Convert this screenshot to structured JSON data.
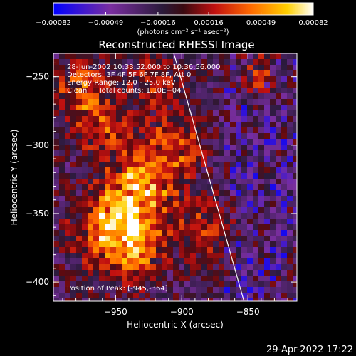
{
  "chart_data": {
    "type": "heatmap",
    "title": "Reconstructed RHESSI Image",
    "xlabel": "Heliocentric X (arcsec)",
    "ylabel": "Heliocentric Y (arcsec)",
    "xlim": [
      -997,
      -813
    ],
    "ylim": [
      -414,
      -233
    ],
    "x_ticks": [
      {
        "value": -950,
        "label": "−950"
      },
      {
        "value": -900,
        "label": "−900"
      },
      {
        "value": -850,
        "label": "−850"
      }
    ],
    "y_ticks": [
      {
        "value": -250,
        "label": "−250"
      },
      {
        "value": -300,
        "label": "−300"
      },
      {
        "value": -350,
        "label": "−350"
      },
      {
        "value": -400,
        "label": "−400"
      }
    ],
    "colorbar": {
      "min": -0.00082,
      "max": 0.00082,
      "ticks": [
        {
          "value": -0.00082,
          "label": "−0.00082"
        },
        {
          "value": -0.00049,
          "label": "−0.00049"
        },
        {
          "value": -0.00016,
          "label": "−0.00016"
        },
        {
          "value": 0.00016,
          "label": "0.00016"
        },
        {
          "value": 0.00049,
          "label": "0.00049"
        },
        {
          "value": 0.00082,
          "label": "0.00082"
        }
      ],
      "unit_label": "(photons cm⁻² s⁻¹ asec⁻²)",
      "colors": [
        "#0000ff",
        "#7a2ea0",
        "#2a1a3a",
        "#5a0a10",
        "#c01010",
        "#ff6a00",
        "#ffd000",
        "#ffffff"
      ]
    },
    "annotations": [
      "28-Jun-2002 10:33:52.000 to 10:36:56.000",
      "Detectors: 3F 4F 5F 6F 7F 8F, Att 0",
      "Energy Range: 12.0 - 25.0 keV",
      "Clean     Total counts: 1.10E+04"
    ],
    "peak_label": "Position of Peak: [-945,-364]",
    "peak": {
      "x": -945,
      "y": -364
    },
    "limb_line": [
      {
        "x": -906,
        "y": -233
      },
      {
        "x": -853,
        "y": -414
      }
    ]
  },
  "footer": {
    "timestamp": "29-Apr-2022 17:22"
  }
}
